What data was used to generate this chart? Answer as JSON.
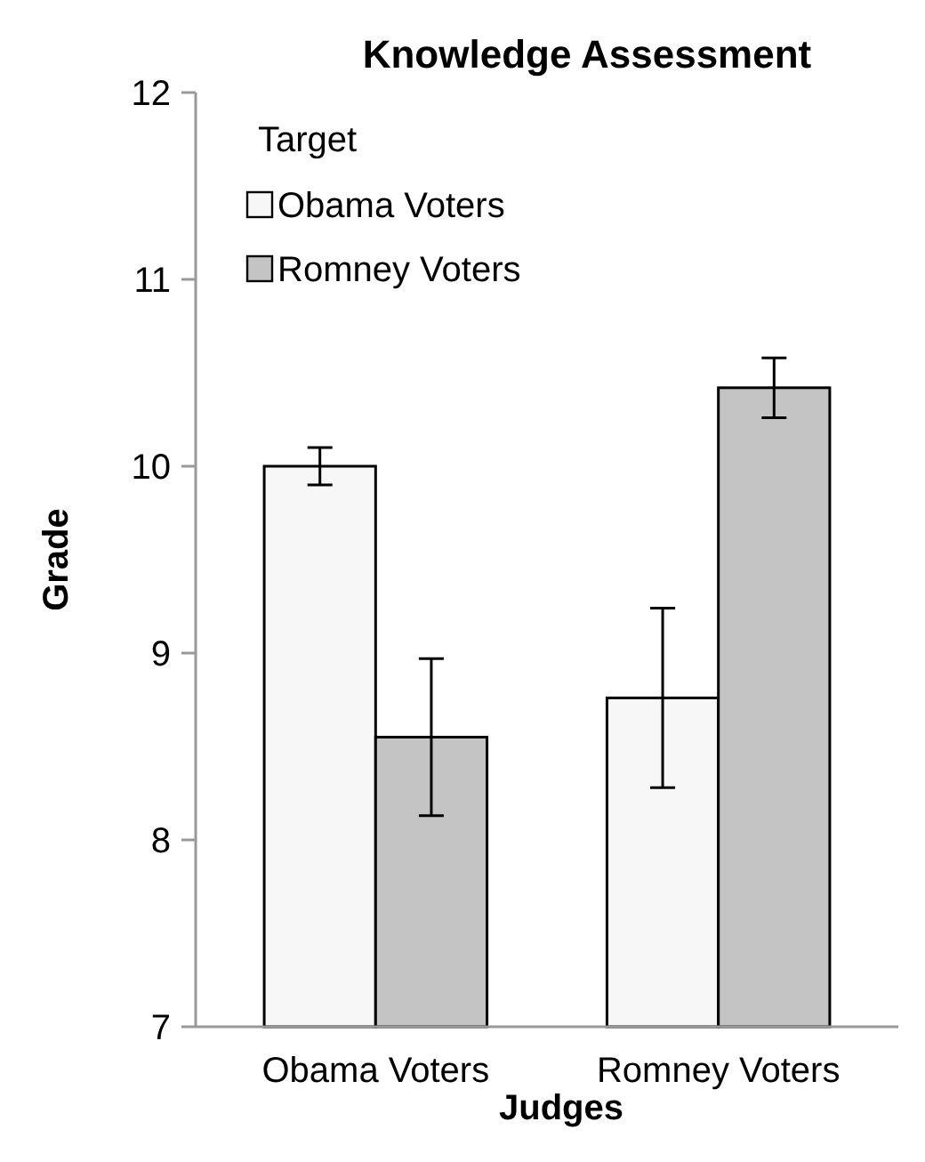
{
  "chart_data": {
    "type": "bar",
    "title": "Knowledge Assessment",
    "xlabel": "Judges",
    "ylabel": "Grade",
    "legend_title": "Target",
    "categories": [
      "Obama Voters",
      "Romney Voters"
    ],
    "series": [
      {
        "name": "Obama Voters",
        "color": "#f7f7f7",
        "values": [
          10.0,
          8.76
        ],
        "errors": [
          0.1,
          0.48
        ]
      },
      {
        "name": "Romney Voters",
        "color": "#c4c4c4",
        "values": [
          8.55,
          10.42
        ],
        "errors": [
          0.42,
          0.16
        ]
      }
    ],
    "ylim": [
      7,
      12
    ],
    "yticks": [
      7,
      8,
      9,
      10,
      11,
      12
    ],
    "legend": "top left"
  }
}
